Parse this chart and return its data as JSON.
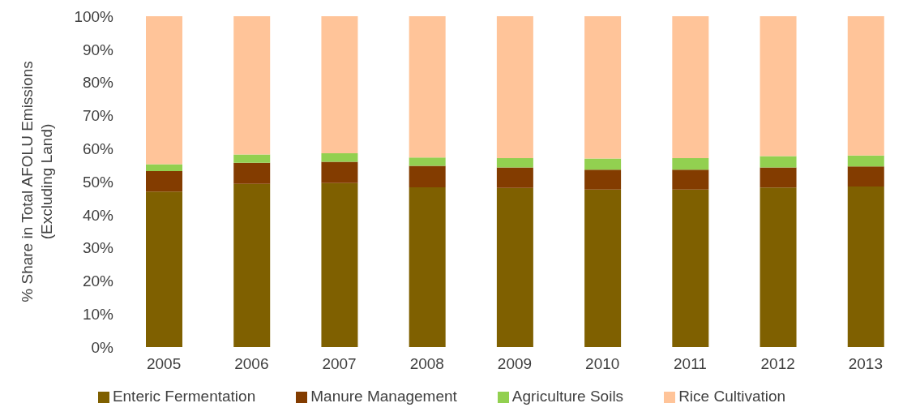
{
  "chart_data": {
    "type": "bar",
    "stacked": true,
    "ylabel": "% Share in Total AFOLU Emissions (Excluding Land)",
    "categories": [
      "2005",
      "2006",
      "2007",
      "2008",
      "2009",
      "2010",
      "2011",
      "2012",
      "2013"
    ],
    "series": [
      {
        "name": "Enteric Fermentation",
        "color": "#7f6000",
        "values": [
          47.0,
          49.3,
          49.6,
          48.3,
          48.1,
          47.6,
          47.6,
          48.2,
          48.5
        ]
      },
      {
        "name": "Manure Management",
        "color": "#833c00",
        "values": [
          6.2,
          6.4,
          6.4,
          6.5,
          6.2,
          6.0,
          6.0,
          6.1,
          6.1
        ]
      },
      {
        "name": "Agriculture Soils",
        "color": "#92d050",
        "values": [
          2.1,
          2.5,
          2.6,
          2.5,
          2.8,
          3.4,
          3.5,
          3.4,
          3.3
        ]
      },
      {
        "name": "Rice Cultivation",
        "color": "#ffc499",
        "values": [
          44.7,
          41.8,
          41.4,
          42.7,
          42.9,
          43.0,
          42.9,
          42.3,
          42.1
        ]
      }
    ],
    "ylim": [
      0,
      100
    ],
    "yticks": [
      {
        "value": 0,
        "label": "0%"
      },
      {
        "value": 10,
        "label": "10%"
      },
      {
        "value": 20,
        "label": "20%"
      },
      {
        "value": 30,
        "label": "30%"
      },
      {
        "value": 40,
        "label": "40%"
      },
      {
        "value": 50,
        "label": "50%"
      },
      {
        "value": 60,
        "label": "60%"
      },
      {
        "value": 70,
        "label": "70%"
      },
      {
        "value": 80,
        "label": "80%"
      },
      {
        "value": 90,
        "label": "90%"
      },
      {
        "value": 100,
        "label": "100%"
      }
    ],
    "grid": false,
    "legend": "bottom"
  }
}
